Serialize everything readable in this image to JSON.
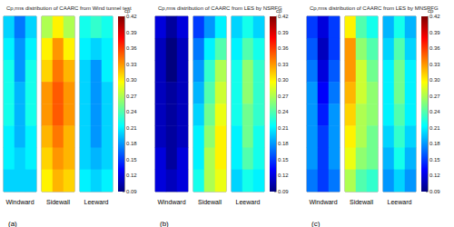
{
  "chart_data": [
    {
      "type": "heatmap",
      "title": "Cp,rms distribution of CAARC from Wind tunnel test",
      "annotation": "(a)",
      "tick_labels": false,
      "faces": [
        {
          "name": "Windward",
          "cells": [
            [
              0.2,
              0.17,
              0.2
            ],
            [
              0.21,
              0.18,
              0.21
            ],
            [
              0.22,
              0.18,
              0.22
            ],
            [
              0.22,
              0.19,
              0.22
            ],
            [
              0.22,
              0.19,
              0.22
            ],
            [
              0.21,
              0.19,
              0.21
            ],
            [
              0.21,
              0.2,
              0.21
            ],
            [
              0.2,
              0.2,
              0.2
            ]
          ]
        },
        {
          "name": "Sidewall",
          "cells": [
            [
              0.27,
              0.3,
              0.27
            ],
            [
              0.3,
              0.33,
              0.3
            ],
            [
              0.31,
              0.34,
              0.32
            ],
            [
              0.33,
              0.35,
              0.33
            ],
            [
              0.33,
              0.35,
              0.33
            ],
            [
              0.32,
              0.34,
              0.32
            ],
            [
              0.31,
              0.33,
              0.32
            ],
            [
              0.3,
              0.32,
              0.31
            ]
          ]
        },
        {
          "name": "Leeward",
          "cells": [
            [
              0.22,
              0.23,
              0.22
            ],
            [
              0.21,
              0.2,
              0.21
            ],
            [
              0.2,
              0.18,
              0.21
            ],
            [
              0.2,
              0.18,
              0.2
            ],
            [
              0.2,
              0.18,
              0.2
            ],
            [
              0.2,
              0.18,
              0.2
            ],
            [
              0.2,
              0.19,
              0.2
            ],
            [
              0.21,
              0.2,
              0.21
            ]
          ]
        }
      ],
      "colorbar": {
        "label": "cp",
        "range": [
          0.09,
          0.42
        ],
        "ticks": [
          0.09,
          0.12,
          0.15,
          0.18,
          0.21,
          0.24,
          0.27,
          {
            "value": 0.3,
            "label": "0.30"
          },
          0.33,
          0.36,
          0.39,
          0.42
        ]
      }
    },
    {
      "type": "heatmap",
      "title": "Cp,rms distribution of CAARC from LES by NSRFG",
      "annotation": "(b)",
      "tick_labels": false,
      "faces": [
        {
          "name": "Windward",
          "cells": [
            [
              0.12,
              0.1,
              0.12
            ],
            [
              0.11,
              0.09,
              0.11
            ],
            [
              0.11,
              0.09,
              0.11
            ],
            [
              0.11,
              0.1,
              0.11
            ],
            [
              0.11,
              0.1,
              0.11
            ],
            [
              0.11,
              0.1,
              0.11
            ],
            [
              0.12,
              0.1,
              0.12
            ],
            [
              0.12,
              0.11,
              0.12
            ]
          ]
        },
        {
          "name": "Sidewall",
          "cells": [
            [
              0.15,
              0.18,
              0.21
            ],
            [
              0.17,
              0.21,
              0.24
            ],
            [
              0.18,
              0.23,
              0.27
            ],
            [
              0.19,
              0.24,
              0.28
            ],
            [
              0.2,
              0.25,
              0.29
            ],
            [
              0.21,
              0.26,
              0.3
            ],
            [
              0.21,
              0.27,
              0.3
            ],
            [
              0.22,
              0.27,
              0.29
            ]
          ]
        },
        {
          "name": "Leeward",
          "cells": [
            [
              0.2,
              0.22,
              0.2
            ],
            [
              0.21,
              0.24,
              0.22
            ],
            [
              0.22,
              0.26,
              0.23
            ],
            [
              0.22,
              0.26,
              0.23
            ],
            [
              0.22,
              0.25,
              0.23
            ],
            [
              0.21,
              0.25,
              0.22
            ],
            [
              0.21,
              0.24,
              0.22
            ],
            [
              0.2,
              0.22,
              0.21
            ]
          ]
        }
      ],
      "colorbar": {
        "label": "cp",
        "range": [
          0.09,
          0.42
        ],
        "ticks": [
          0.09,
          0.12,
          0.15,
          0.18,
          0.21,
          0.24,
          0.27,
          {
            "value": 0.3,
            "label": "0.30"
          },
          0.33,
          0.36,
          0.39,
          0.42
        ]
      }
    },
    {
      "type": "heatmap",
      "title": "Cp,rms distribution of CAARC from LES by MNSRFG",
      "annotation": "(c)",
      "tick_labels": false,
      "faces": [
        {
          "name": "Windward",
          "cells": [
            [
              0.15,
              0.12,
              0.15
            ],
            [
              0.16,
              0.11,
              0.15
            ],
            [
              0.17,
              0.12,
              0.16
            ],
            [
              0.18,
              0.13,
              0.17
            ],
            [
              0.18,
              0.14,
              0.18
            ],
            [
              0.18,
              0.15,
              0.18
            ],
            [
              0.18,
              0.15,
              0.18
            ],
            [
              0.17,
              0.15,
              0.17
            ]
          ]
        },
        {
          "name": "Sidewall",
          "cells": [
            [
              0.3,
              0.24,
              0.22
            ],
            [
              0.33,
              0.26,
              0.24
            ],
            [
              0.33,
              0.28,
              0.25
            ],
            [
              0.32,
              0.28,
              0.26
            ],
            [
              0.31,
              0.27,
              0.26
            ],
            [
              0.3,
              0.27,
              0.25
            ],
            [
              0.29,
              0.26,
              0.25
            ],
            [
              0.27,
              0.24,
              0.23
            ]
          ]
        },
        {
          "name": "Leeward",
          "cells": [
            [
              0.19,
              0.22,
              0.19
            ],
            [
              0.2,
              0.24,
              0.2
            ],
            [
              0.21,
              0.25,
              0.21
            ],
            [
              0.21,
              0.25,
              0.21
            ],
            [
              0.21,
              0.24,
              0.21
            ],
            [
              0.2,
              0.23,
              0.2
            ],
            [
              0.19,
              0.22,
              0.19
            ],
            [
              0.18,
              0.2,
              0.18
            ]
          ]
        }
      ],
      "colorbar": {
        "label": "cp",
        "range": [
          0.09,
          0.42
        ],
        "ticks": [
          0.09,
          0.12,
          0.15,
          0.18,
          0.21,
          0.24,
          0.27,
          {
            "value": 0.3,
            "label": "0.30"
          },
          0.33,
          0.36,
          0.39,
          0.42
        ]
      }
    }
  ]
}
